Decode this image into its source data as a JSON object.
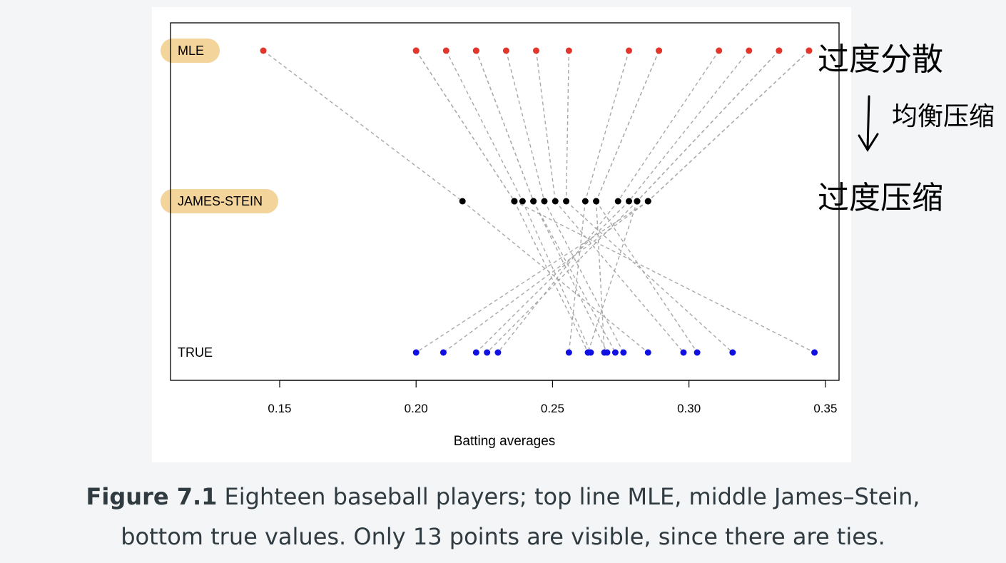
{
  "chart_data": {
    "type": "scatter",
    "xlabel": "Batting averages",
    "xlim": [
      0.11,
      0.355
    ],
    "xticks": [
      "0.15",
      "0.20",
      "0.25",
      "0.30",
      "0.35"
    ],
    "xtick_values": [
      0.15,
      0.2,
      0.25,
      0.3,
      0.35
    ],
    "rows": [
      {
        "name": "MLE",
        "color": "#e0362c",
        "highlighted": true
      },
      {
        "name": "JAMES-STEIN",
        "color": "#000000",
        "highlighted": true
      },
      {
        "name": "TRUE",
        "color": "#1010e0",
        "highlighted": false
      }
    ],
    "players": [
      {
        "mle": 0.144,
        "js": 0.217,
        "true": 0.285
      },
      {
        "mle": 0.2,
        "js": 0.236,
        "true": 0.263
      },
      {
        "mle": 0.211,
        "js": 0.239,
        "true": 0.264
      },
      {
        "mle": 0.222,
        "js": 0.243,
        "true": 0.27
      },
      {
        "mle": 0.222,
        "js": 0.243,
        "true": 0.273
      },
      {
        "mle": 0.233,
        "js": 0.247,
        "true": 0.276
      },
      {
        "mle": 0.244,
        "js": 0.251,
        "true": 0.298
      },
      {
        "mle": 0.256,
        "js": 0.255,
        "true": 0.316
      },
      {
        "mle": 0.278,
        "js": 0.262,
        "true": 0.256
      },
      {
        "mle": 0.289,
        "js": 0.266,
        "true": 0.269
      },
      {
        "mle": 0.289,
        "js": 0.266,
        "true": 0.303
      },
      {
        "mle": 0.311,
        "js": 0.274,
        "true": 0.23
      },
      {
        "mle": 0.322,
        "js": 0.278,
        "true": 0.222
      },
      {
        "mle": 0.333,
        "js": 0.281,
        "true": 0.226
      },
      {
        "mle": 0.344,
        "js": 0.285,
        "true": 0.2
      },
      {
        "mle": 0.344,
        "js": 0.285,
        "true": 0.21
      },
      {
        "mle": 0.2,
        "js": 0.236,
        "true": 0.346
      },
      {
        "mle": 0.333,
        "js": 0.281,
        "true": 0.263
      }
    ],
    "grid": false,
    "connector_style": "dashed gray"
  },
  "annotations": {
    "top": "过度分散",
    "arrow": "↓",
    "side": "均衡压缩",
    "bottom": "过度压缩",
    "highlight_color": "#f3d49b"
  },
  "caption": {
    "label": "Figure 7.1",
    "line1": "Eighteen baseball players; top line MLE, middle James–Stein,",
    "line2": "bottom true values. Only 13 points are visible, since there are ties."
  }
}
